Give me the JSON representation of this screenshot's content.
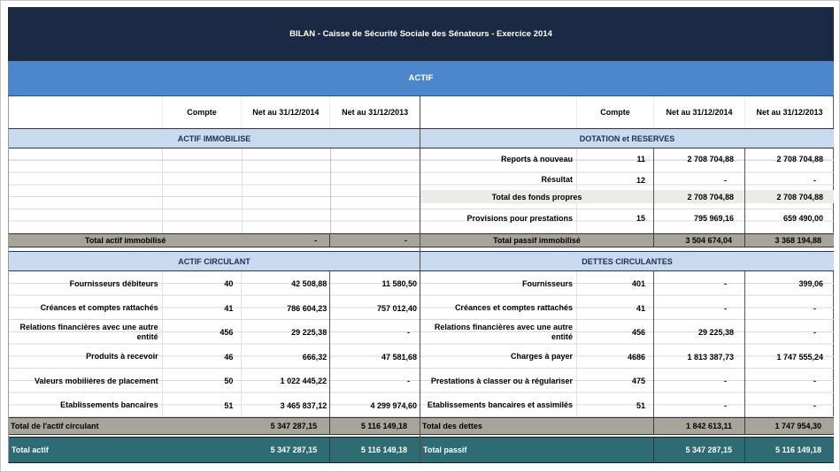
{
  "title": "BILAN - Caisse de Sécurité Sociale des Sénateurs - Exercice 2014",
  "banner": "ACTIF",
  "columns": [
    "Compte",
    "Net au 31/12/2014",
    "Net au 31/12/2013"
  ],
  "colors": {
    "title_bar": "#1a2a45",
    "banner": "#4c86cc",
    "section_band": "#c9d9ee",
    "total_band": "#a7a49a",
    "subtotal_band": "#ecebe5",
    "grand_band": "#2e6b73"
  },
  "left": {
    "section1": {
      "title": "ACTIF IMMOBILISE",
      "rows": [],
      "total": {
        "label": "Total actif immobilisé",
        "v2014": "-",
        "v2013": "-"
      }
    },
    "section2": {
      "title": "ACTIF CIRCULANT",
      "rows": [
        {
          "label": "Fournisseurs débiteurs",
          "compte": "40",
          "v2014": "42 508,88",
          "v2013": "11 580,50"
        },
        {
          "label": "Créances et comptes rattachés",
          "compte": "41",
          "v2014": "786 604,23",
          "v2013": "757 012,40"
        },
        {
          "label": "Relations financières avec une autre entité",
          "compte": "456",
          "v2014": "29 225,38",
          "v2013": "-"
        },
        {
          "label": "Produits à recevoir",
          "compte": "46",
          "v2014": "666,32",
          "v2013": "47 581,68"
        },
        {
          "label": "Valeurs mobilières de placement",
          "compte": "50",
          "v2014": "1 022 445,22",
          "v2013": "-"
        },
        {
          "label": "Etablissements bancaires",
          "compte": "51",
          "v2014": "3 465 837,12",
          "v2013": "4 299 974,60"
        }
      ],
      "total": {
        "label": "Total de l'actif circulant",
        "v2014": "5 347 287,15",
        "v2013": "5 116 149,18"
      }
    },
    "grand": {
      "label": "Total actif",
      "v2014": "5 347 287,15",
      "v2013": "5 116 149,18"
    }
  },
  "right": {
    "section1": {
      "title": "DOTATION et RESERVES",
      "rows": [
        {
          "label": "Reports à nouveau",
          "compte": "11",
          "v2014": "2 708 704,88",
          "v2013": "2 708 704,88"
        },
        {
          "label": "Résultat",
          "compte": "12",
          "v2014": "-",
          "v2013": "-"
        },
        {
          "type": "subtotal",
          "label": "Total des fonds propres",
          "v2014": "2 708 704,88",
          "v2013": "2 708 704,88"
        },
        {
          "label": "Provisions pour prestations",
          "compte": "15",
          "v2014": "795 969,16",
          "v2013": "659 490,00"
        }
      ],
      "total": {
        "label": "Total passif immobilisé",
        "v2014": "3 504 674,04",
        "v2013": "3 368 194,88"
      }
    },
    "section2": {
      "title": "DETTES CIRCULANTES",
      "rows": [
        {
          "label": "Fournisseurs",
          "compte": "401",
          "v2014": "-",
          "v2013": "399,06"
        },
        {
          "label": "Créances et comptes rattachés",
          "compte": "41",
          "v2014": "-",
          "v2013": "-"
        },
        {
          "label": "Relations financières avec une autre entité",
          "compte": "456",
          "v2014": "29 225,38",
          "v2013": "-"
        },
        {
          "label": "Charges à payer",
          "compte": "4686",
          "v2014": "1 813 387,73",
          "v2013": "1 747 555,24"
        },
        {
          "label": "Prestations à classer ou à régulariser",
          "compte": "475",
          "v2014": "-",
          "v2013": "-"
        },
        {
          "label": "Etablissements bancaires et assimilés",
          "compte": "51",
          "v2014": "-",
          "v2013": "-"
        }
      ],
      "total": {
        "label": "Total des dettes",
        "v2014": "1 842 613,11",
        "v2013": "1 747 954,30"
      }
    },
    "grand": {
      "label": "Total passif",
      "v2014": "5 347 287,15",
      "v2013": "5 116 149,18"
    }
  }
}
